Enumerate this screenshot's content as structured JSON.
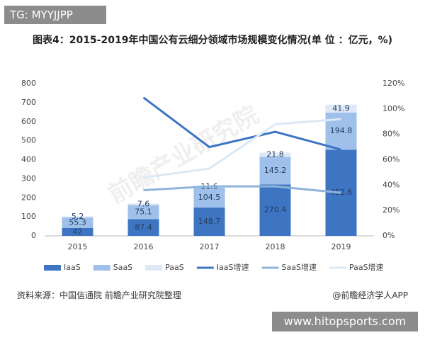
{
  "badge": "TG: MYYJJPP",
  "chart_data": {
    "type": "bar",
    "title": "图表4：2015-2019年中国公有云细分领域市场规模变化情况(单 位 ：亿元，%)",
    "watermark": "前瞻产业研究院",
    "categories": [
      "2015",
      "2016",
      "2017",
      "2018",
      "2019"
    ],
    "series": [
      {
        "name": "IaaS",
        "color": "#3d75c3",
        "values": [
          42,
          87.4,
          148.7,
          270.4,
          452.6
        ]
      },
      {
        "name": "SaaS",
        "color": "#9fc0ea",
        "values": [
          55.3,
          75.1,
          104.5,
          145.2,
          194.8
        ]
      },
      {
        "name": "PaaS",
        "color": "#dde9f7",
        "values": [
          5.2,
          7.6,
          11.6,
          21.8,
          41.9
        ]
      },
      {
        "name": "IaaS增速",
        "type": "line",
        "axis": "y2",
        "color": "#3d75c3",
        "values": [
          null,
          109,
          70,
          82,
          68
        ]
      },
      {
        "name": "SaaS增速",
        "type": "line",
        "axis": "y2",
        "color": "#8fb4dc",
        "values": [
          null,
          36,
          39,
          39,
          34
        ]
      },
      {
        "name": "PaaS增速",
        "type": "line",
        "axis": "y2",
        "color": "#dbe8f6",
        "values": [
          null,
          46,
          53,
          88,
          92
        ]
      }
    ],
    "stacked": true,
    "ylim": [
      0,
      800
    ],
    "yticks": [
      0,
      100,
      200,
      300,
      400,
      500,
      600,
      700,
      800
    ],
    "y2lim": [
      0,
      120
    ],
    "y2ticks": [
      {
        "value": 0,
        "label": "0%"
      },
      {
        "value": 20,
        "label": "20%"
      },
      {
        "value": 40,
        "label": "40%"
      },
      {
        "value": 60,
        "label": "60%"
      },
      {
        "value": 80,
        "label": "80%"
      },
      {
        "value": 100,
        "label": "100%"
      },
      {
        "value": 120,
        "label": "120%"
      }
    ],
    "grid": false,
    "legend": "bottom"
  },
  "footer": {
    "source": "资料来源：中国信通院 前瞻产业研究院整理",
    "brand": "@前瞻经济学人APP"
  },
  "site": "www.hitopsports.com"
}
